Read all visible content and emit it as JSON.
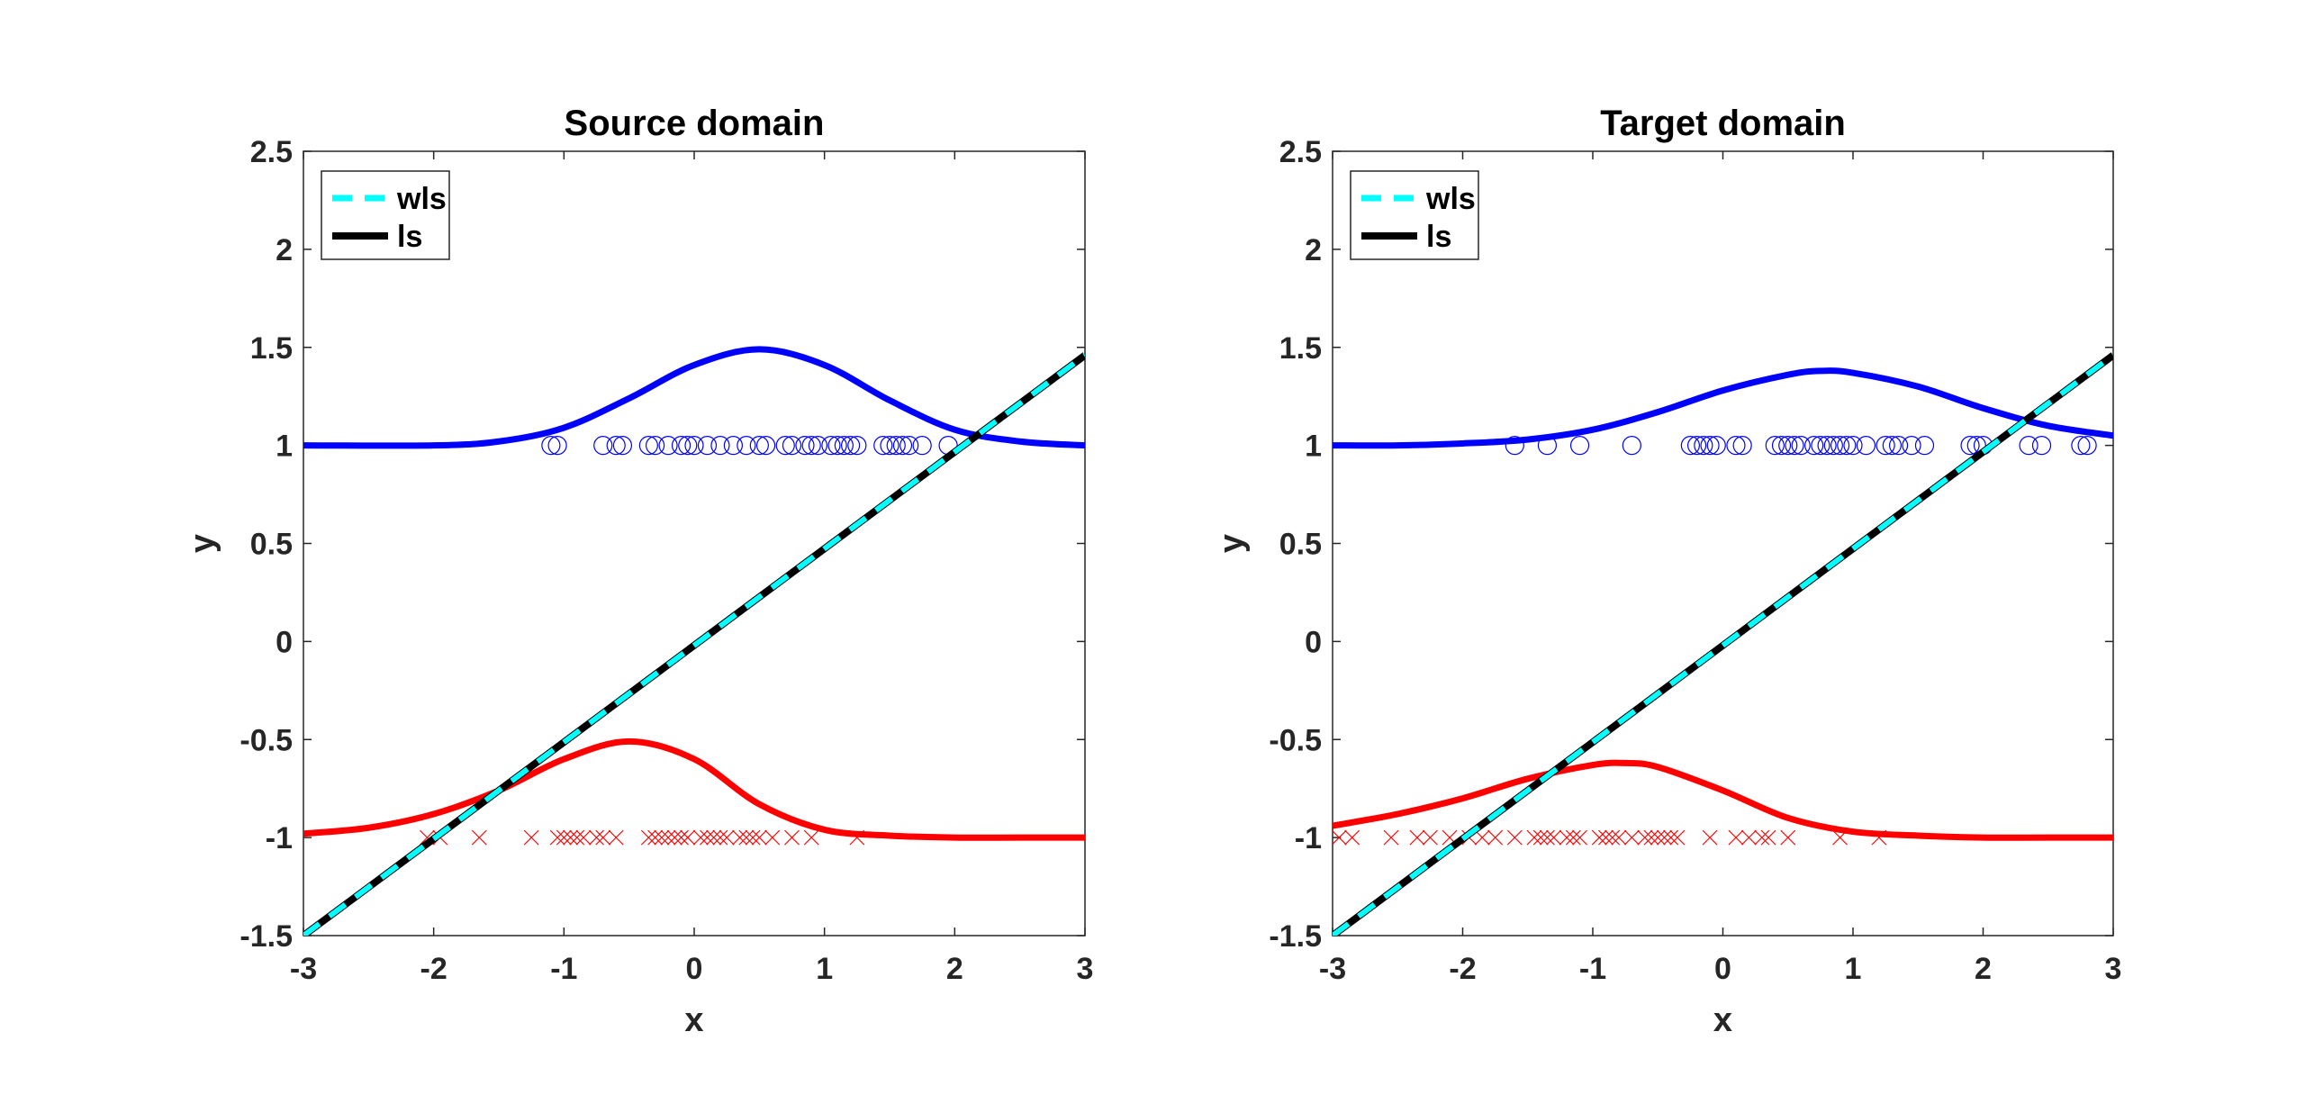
{
  "chart_data": [
    {
      "type": "line",
      "title": "Source domain",
      "xlabel": "x",
      "ylabel": "y",
      "xlim": [
        -3,
        3
      ],
      "ylim": [
        -1.5,
        2.5
      ],
      "xticks": [
        "-3",
        "-2",
        "-1",
        "0",
        "1",
        "2",
        "3"
      ],
      "yticks": [
        "-1.5",
        "-1",
        "-0.5",
        "0",
        "0.5",
        "1",
        "1.5",
        "2",
        "2.5"
      ],
      "grid": false,
      "legend_position": "top-left",
      "series": [
        {
          "name": "wls",
          "style": "dashed",
          "color": "#00ffff",
          "x": [
            -3,
            3
          ],
          "y": [
            -1.5,
            1.46
          ]
        },
        {
          "name": "ls",
          "style": "solid",
          "color": "#000000",
          "x": [
            -3,
            3
          ],
          "y": [
            -1.5,
            1.46
          ]
        }
      ],
      "curves": [
        {
          "color": "#0000ff",
          "x": [
            -3,
            -2,
            -1.5,
            -1,
            -0.5,
            0,
            0.5,
            1,
            1.5,
            2,
            2.5,
            3
          ],
          "y": [
            1.0,
            1.0,
            1.02,
            1.09,
            1.24,
            1.41,
            1.49,
            1.41,
            1.23,
            1.08,
            1.02,
            1.0
          ]
        },
        {
          "color": "#ff0000",
          "x": [
            -3,
            -2.5,
            -2,
            -1.5,
            -1,
            -0.5,
            0,
            0.5,
            1,
            1.5,
            2,
            2.5,
            3
          ],
          "y": [
            -0.98,
            -0.95,
            -0.88,
            -0.76,
            -0.6,
            -0.51,
            -0.6,
            -0.83,
            -0.96,
            -0.99,
            -1.0,
            -1.0,
            -1.0
          ]
        }
      ],
      "scatter_circles": {
        "color": "#0000ff",
        "y": 1,
        "x": [
          -1.1,
          -1.05,
          -0.7,
          -0.6,
          -0.55,
          -0.35,
          -0.3,
          -0.2,
          -0.1,
          -0.05,
          0.0,
          0.1,
          0.2,
          0.3,
          0.4,
          0.5,
          0.55,
          0.7,
          0.75,
          0.85,
          0.9,
          0.95,
          1.05,
          1.1,
          1.15,
          1.2,
          1.25,
          1.45,
          1.5,
          1.55,
          1.6,
          1.65,
          1.75,
          1.95
        ]
      },
      "scatter_crosses": {
        "color": "#ff0000",
        "y": -1,
        "x": [
          -2.05,
          -1.95,
          -1.65,
          -1.25,
          -1.05,
          -1.0,
          -0.95,
          -0.9,
          -0.85,
          -0.75,
          -0.7,
          -0.6,
          -0.35,
          -0.3,
          -0.25,
          -0.2,
          -0.15,
          -0.1,
          -0.05,
          0.05,
          0.1,
          0.15,
          0.2,
          0.25,
          0.35,
          0.4,
          0.45,
          0.5,
          0.6,
          0.75,
          0.9,
          1.25
        ]
      }
    },
    {
      "type": "line",
      "title": "Target domain",
      "xlabel": "x",
      "ylabel": "y",
      "xlim": [
        -3,
        3
      ],
      "ylim": [
        -1.5,
        2.5
      ],
      "xticks": [
        "-3",
        "-2",
        "-1",
        "0",
        "1",
        "2",
        "3"
      ],
      "yticks": [
        "-1.5",
        "-1",
        "-0.5",
        "0",
        "0.5",
        "1",
        "1.5",
        "2",
        "2.5"
      ],
      "grid": false,
      "legend_position": "top-left",
      "series": [
        {
          "name": "wls",
          "style": "dashed",
          "color": "#00ffff",
          "x": [
            -3,
            3
          ],
          "y": [
            -1.5,
            1.46
          ]
        },
        {
          "name": "ls",
          "style": "solid",
          "color": "#000000",
          "x": [
            -3,
            3
          ],
          "y": [
            -1.5,
            1.46
          ]
        }
      ],
      "curves": [
        {
          "color": "#0000ff",
          "x": [
            -3,
            -2.5,
            -2,
            -1.5,
            -1,
            -0.5,
            0,
            0.5,
            0.75,
            1,
            1.5,
            2,
            2.5,
            3
          ],
          "y": [
            1.0,
            1.0,
            1.01,
            1.03,
            1.08,
            1.17,
            1.28,
            1.36,
            1.38,
            1.37,
            1.3,
            1.19,
            1.1,
            1.05
          ]
        },
        {
          "color": "#ff0000",
          "x": [
            -3,
            -2.5,
            -2,
            -1.5,
            -1,
            -0.75,
            -0.5,
            0,
            0.5,
            1,
            1.5,
            2,
            2.5,
            3
          ],
          "y": [
            -0.94,
            -0.88,
            -0.8,
            -0.7,
            -0.63,
            -0.62,
            -0.64,
            -0.76,
            -0.9,
            -0.97,
            -0.99,
            -1.0,
            -1.0,
            -1.0
          ]
        }
      ],
      "scatter_circles": {
        "color": "#0000ff",
        "y": 1,
        "x": [
          -1.6,
          -1.35,
          -1.1,
          -0.7,
          -0.25,
          -0.2,
          -0.15,
          -0.1,
          -0.05,
          0.1,
          0.15,
          0.4,
          0.45,
          0.5,
          0.55,
          0.6,
          0.7,
          0.75,
          0.8,
          0.85,
          0.9,
          0.95,
          1.0,
          1.1,
          1.25,
          1.3,
          1.35,
          1.45,
          1.55,
          1.9,
          1.95,
          2.0,
          2.35,
          2.45,
          2.75,
          2.8
        ]
      },
      "scatter_crosses": {
        "color": "#ff0000",
        "y": -1,
        "x": [
          -2.95,
          -2.85,
          -2.55,
          -2.35,
          -2.25,
          -2.1,
          -1.95,
          -1.85,
          -1.75,
          -1.6,
          -1.45,
          -1.4,
          -1.35,
          -1.3,
          -1.2,
          -1.15,
          -1.1,
          -0.95,
          -0.9,
          -0.85,
          -0.8,
          -0.7,
          -0.6,
          -0.55,
          -0.5,
          -0.45,
          -0.4,
          -0.35,
          -0.1,
          0.1,
          0.2,
          0.3,
          0.35,
          0.5,
          0.9,
          1.2
        ]
      }
    }
  ]
}
